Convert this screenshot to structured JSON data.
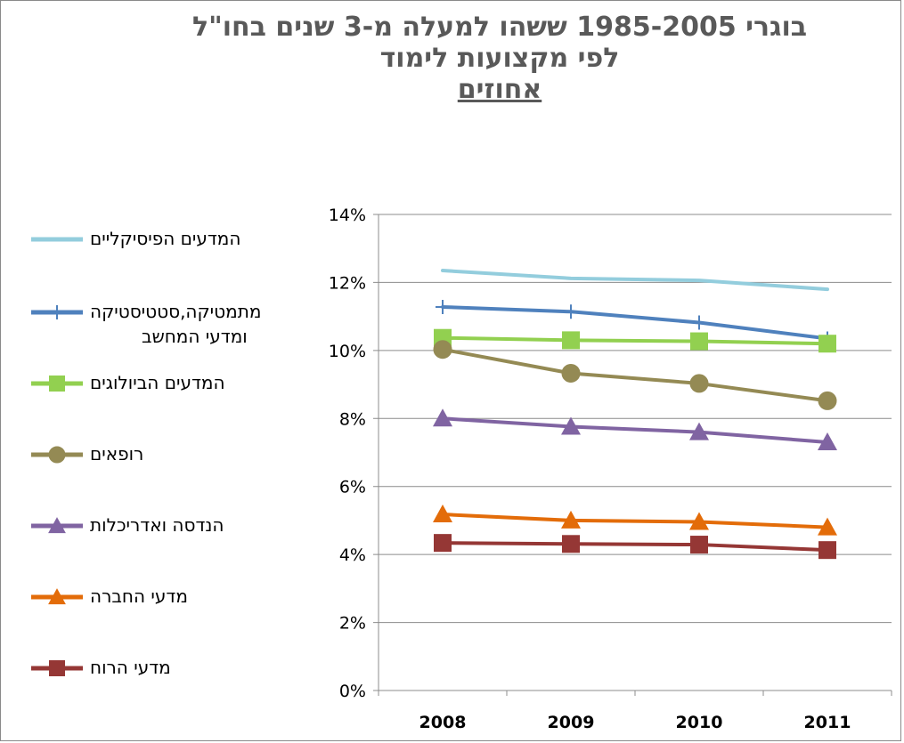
{
  "chart_data": {
    "type": "line",
    "title": [
      "בוגרי 1985-2005 ששהו למעלה מ-3 שנים בחו\"ל",
      "לפי מקצועות לימוד",
      "אחוזים"
    ],
    "categories": [
      "2008",
      "2009",
      "2010",
      "2011"
    ],
    "y_ticks": [
      "0%",
      "2%",
      "4%",
      "6%",
      "8%",
      "10%",
      "12%",
      "14%"
    ],
    "ylim": [
      0,
      14
    ],
    "grid": true,
    "legend_position": "left",
    "series": [
      {
        "name": "המדעים הפיסיקליים",
        "values": [
          12.35,
          12.12,
          12.06,
          11.8
        ],
        "color": "#93cddd",
        "marker": "none"
      },
      {
        "name": "מתמטיקה,סטטיסטיקה ומדעי המחשב",
        "name_lines": [
          "מתמטיקה,סטטיסטיקה",
          "ומדעי המחשב"
        ],
        "values": [
          11.28,
          11.14,
          10.82,
          10.35
        ],
        "color": "#4f81bd",
        "marker": "plus"
      },
      {
        "name": "המדעים הביולוגים",
        "values": [
          10.37,
          10.3,
          10.27,
          10.2
        ],
        "color": "#92d050",
        "marker": "square"
      },
      {
        "name": "רופאים",
        "values": [
          10.03,
          9.33,
          9.03,
          8.52
        ],
        "color": "#948a54",
        "marker": "circle"
      },
      {
        "name": "הנדסה ואדריכלות",
        "values": [
          8.0,
          7.76,
          7.6,
          7.3
        ],
        "color": "#8064a2",
        "marker": "triangle"
      },
      {
        "name": "מדעי החברה",
        "values": [
          5.18,
          5.0,
          4.96,
          4.8
        ],
        "color": "#e36c09",
        "marker": "triangle"
      },
      {
        "name": "מדעי הרוח",
        "values": [
          4.34,
          4.31,
          4.29,
          4.13
        ],
        "color": "#953735",
        "marker": "square"
      }
    ]
  }
}
